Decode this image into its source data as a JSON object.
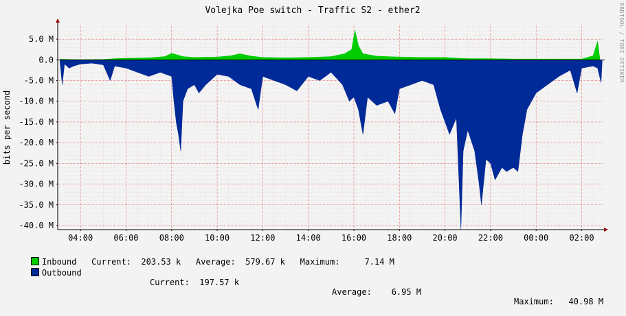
{
  "chart_data": {
    "type": "area",
    "title": "Volejka Poe switch - Traffic S2 - ether2",
    "ylabel": "bits per second",
    "watermark": "RRDTOOL / TOBI OETIKER",
    "ylim": [
      -41000000,
      8500000
    ],
    "y_ticks": [
      {
        "value": 5000000,
        "label": "5.0 M"
      },
      {
        "value": 0,
        "label": "0.0"
      },
      {
        "value": -5000000,
        "label": "-5.0 M"
      },
      {
        "value": -10000000,
        "label": "-10.0 M"
      },
      {
        "value": -15000000,
        "label": "-15.0 M"
      },
      {
        "value": -20000000,
        "label": "-20.0 M"
      },
      {
        "value": -25000000,
        "label": "-25.0 M"
      },
      {
        "value": -30000000,
        "label": "-30.0 M"
      },
      {
        "value": -35000000,
        "label": "-35.0 M"
      },
      {
        "value": -40000000,
        "label": "-40.0 M"
      }
    ],
    "x_range_hours": [
      3.0,
      26.95
    ],
    "x_ticks": [
      {
        "value": 4,
        "label": "04:00"
      },
      {
        "value": 6,
        "label": "06:00"
      },
      {
        "value": 8,
        "label": "08:00"
      },
      {
        "value": 10,
        "label": "10:00"
      },
      {
        "value": 12,
        "label": "12:00"
      },
      {
        "value": 14,
        "label": "14:00"
      },
      {
        "value": 16,
        "label": "16:00"
      },
      {
        "value": 18,
        "label": "18:00"
      },
      {
        "value": 20,
        "label": "20:00"
      },
      {
        "value": 22,
        "label": "22:00"
      },
      {
        "value": 24,
        "label": "00:00"
      },
      {
        "value": 26,
        "label": "02:00"
      }
    ],
    "grid": true,
    "series": [
      {
        "name": "Inbound",
        "color": "#00cc00",
        "points": [
          [
            3.1,
            0.2
          ],
          [
            3.5,
            0.1
          ],
          [
            4.0,
            0.05
          ],
          [
            5.0,
            0.1
          ],
          [
            5.5,
            0.3
          ],
          [
            6.0,
            0.4
          ],
          [
            7.0,
            0.5
          ],
          [
            7.7,
            0.8
          ],
          [
            8.0,
            1.6
          ],
          [
            8.2,
            1.3
          ],
          [
            8.5,
            0.8
          ],
          [
            9.0,
            0.6
          ],
          [
            10.0,
            0.7
          ],
          [
            10.6,
            1.0
          ],
          [
            11.0,
            1.5
          ],
          [
            11.5,
            0.9
          ],
          [
            12.0,
            0.6
          ],
          [
            13.0,
            0.5
          ],
          [
            14.0,
            0.6
          ],
          [
            15.0,
            0.8
          ],
          [
            15.6,
            1.5
          ],
          [
            15.9,
            2.5
          ],
          [
            16.05,
            7.14
          ],
          [
            16.2,
            3.5
          ],
          [
            16.4,
            1.5
          ],
          [
            17.0,
            0.9
          ],
          [
            18.0,
            0.7
          ],
          [
            19.0,
            0.6
          ],
          [
            20.0,
            0.6
          ],
          [
            20.6,
            0.4
          ],
          [
            21.0,
            0.3
          ],
          [
            22.0,
            0.3
          ],
          [
            23.0,
            0.2
          ],
          [
            24.0,
            0.2
          ],
          [
            25.0,
            0.2
          ],
          [
            26.0,
            0.2
          ],
          [
            26.5,
            1.0
          ],
          [
            26.7,
            4.5
          ],
          [
            26.8,
            0.2
          ]
        ]
      },
      {
        "name": "Outbound",
        "color": "#002a97",
        "points": [
          [
            3.1,
            -0.5
          ],
          [
            3.2,
            -6.0
          ],
          [
            3.3,
            -1.0
          ],
          [
            3.5,
            -2.0
          ],
          [
            3.7,
            -1.5
          ],
          [
            4.0,
            -1.0
          ],
          [
            4.5,
            -0.8
          ],
          [
            5.0,
            -1.2
          ],
          [
            5.3,
            -5.0
          ],
          [
            5.5,
            -1.5
          ],
          [
            6.0,
            -2.0
          ],
          [
            6.5,
            -3.0
          ],
          [
            7.0,
            -4.0
          ],
          [
            7.5,
            -3.0
          ],
          [
            8.0,
            -4.0
          ],
          [
            8.1,
            -10.0
          ],
          [
            8.2,
            -15.0
          ],
          [
            8.3,
            -18.0
          ],
          [
            8.4,
            -22.0
          ],
          [
            8.5,
            -10.0
          ],
          [
            8.7,
            -7.0
          ],
          [
            9.0,
            -6.0
          ],
          [
            9.2,
            -8.0
          ],
          [
            9.5,
            -6.0
          ],
          [
            10.0,
            -3.5
          ],
          [
            10.5,
            -4.0
          ],
          [
            11.0,
            -6.0
          ],
          [
            11.5,
            -7.0
          ],
          [
            11.8,
            -12.0
          ],
          [
            12.0,
            -4.0
          ],
          [
            12.5,
            -5.0
          ],
          [
            13.0,
            -6.0
          ],
          [
            13.5,
            -7.5
          ],
          [
            14.0,
            -4.0
          ],
          [
            14.5,
            -5.0
          ],
          [
            15.0,
            -3.0
          ],
          [
            15.5,
            -6.0
          ],
          [
            15.8,
            -10.0
          ],
          [
            16.0,
            -9.0
          ],
          [
            16.2,
            -12.0
          ],
          [
            16.4,
            -18.0
          ],
          [
            16.6,
            -9.0
          ],
          [
            17.0,
            -11.0
          ],
          [
            17.5,
            -10.0
          ],
          [
            17.8,
            -13.0
          ],
          [
            18.0,
            -7.0
          ],
          [
            18.5,
            -6.0
          ],
          [
            19.0,
            -5.0
          ],
          [
            19.5,
            -6.0
          ],
          [
            19.8,
            -12.0
          ],
          [
            20.0,
            -15.0
          ],
          [
            20.2,
            -18.0
          ],
          [
            20.5,
            -14.0
          ],
          [
            20.7,
            -40.98
          ],
          [
            20.8,
            -22.0
          ],
          [
            21.0,
            -17.0
          ],
          [
            21.3,
            -22.0
          ],
          [
            21.5,
            -30.0
          ],
          [
            21.6,
            -35.0
          ],
          [
            21.8,
            -24.0
          ],
          [
            22.0,
            -25.0
          ],
          [
            22.2,
            -29.0
          ],
          [
            22.5,
            -26.0
          ],
          [
            22.7,
            -27.0
          ],
          [
            23.0,
            -26.0
          ],
          [
            23.2,
            -27.0
          ],
          [
            23.4,
            -18.0
          ],
          [
            23.6,
            -12.0
          ],
          [
            24.0,
            -8.0
          ],
          [
            24.5,
            -6.0
          ],
          [
            25.0,
            -4.0
          ],
          [
            25.5,
            -2.5
          ],
          [
            25.8,
            -8.0
          ],
          [
            26.0,
            -2.0
          ],
          [
            26.5,
            -1.5
          ],
          [
            26.7,
            -2.0
          ],
          [
            26.85,
            -5.5
          ],
          [
            26.9,
            -0.5
          ]
        ]
      }
    ],
    "legend": [
      {
        "name": "Inbound",
        "current": "203.53 k",
        "average": "579.67 k",
        "maximum": "7.14 M"
      },
      {
        "name": "Outbound",
        "current": "197.57 k",
        "average": "6.95 M",
        "maximum": "40.98 M"
      }
    ]
  },
  "legend_labels": {
    "current": "Current:",
    "average": "Average:",
    "maximum": "Maximum:"
  }
}
